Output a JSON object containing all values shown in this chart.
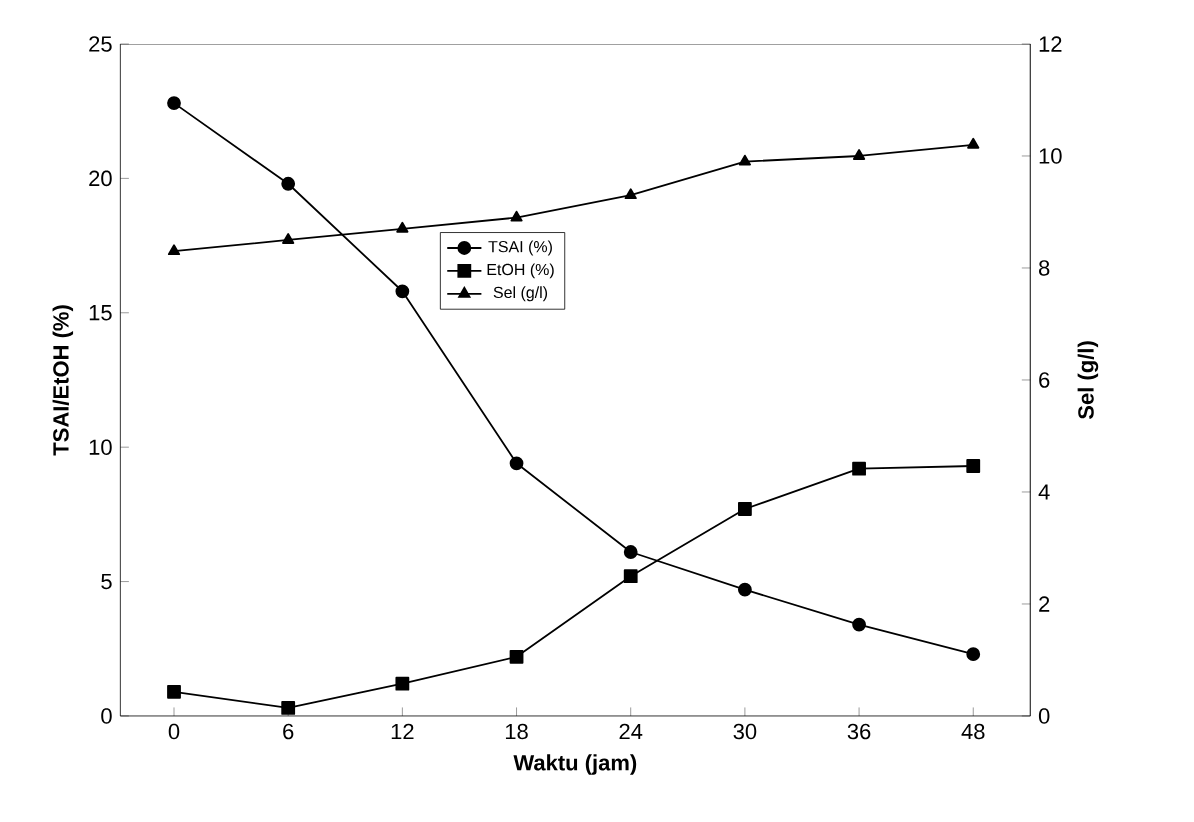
{
  "chart_data": {
    "type": "line",
    "xlabel": "Waktu (jam)",
    "ylabel": "TSAI/EtOH (%)",
    "y2label": "Sel (g/l)",
    "categories": [
      "0",
      "6",
      "12",
      "18",
      "24",
      "30",
      "36",
      "48"
    ],
    "ylim": [
      0,
      25
    ],
    "yticks": [
      0,
      5,
      10,
      15,
      20,
      25
    ],
    "y2lim": [
      0,
      12
    ],
    "y2ticks": [
      0,
      2,
      4,
      6,
      8,
      10,
      12
    ],
    "legend": "top",
    "grid": false,
    "line_style": "solid",
    "series": [
      {
        "name": "TSAI (%)",
        "color": "#000000",
        "marker": "circle",
        "values": [
          22.8,
          19.8,
          15.8,
          9.4,
          6.1,
          4.7,
          3.4,
          2.3
        ]
      },
      {
        "name": "EtOH (%)",
        "color": "#000000",
        "marker": "square",
        "values": [
          0.9,
          0.3,
          1.2,
          2.2,
          5.2,
          7.7,
          9.2,
          9.3
        ]
      },
      {
        "name": "Sel (g/l)",
        "color": "#000000",
        "marker": "triangle",
        "axis": "y2",
        "values": [
          8.3,
          8.5,
          8.7,
          8.9,
          9.3,
          9.9,
          10.0,
          10.2
        ]
      }
    ]
  }
}
